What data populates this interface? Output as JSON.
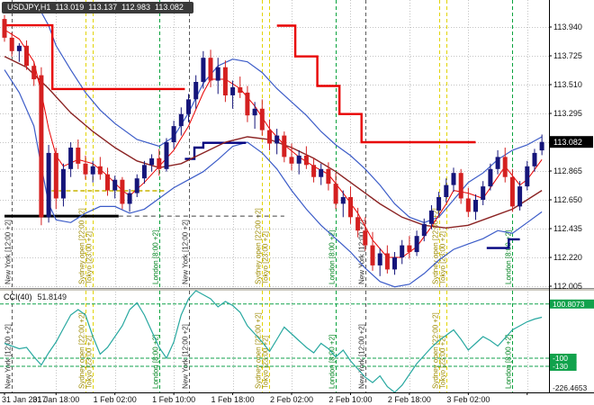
{
  "header": {
    "symbol": "USDJPY,H1",
    "open": "113.019",
    "high": "113.137",
    "low": "112.983",
    "close": "113.082"
  },
  "price_axis": {
    "values": [
      113.94,
      113.725,
      113.51,
      113.295,
      113.08,
      112.865,
      112.65,
      112.435,
      112.22,
      112.005
    ],
    "current_price": 113.082,
    "current_price_label": "113.082"
  },
  "time_axis": {
    "ticks": [
      {
        "i": 0,
        "label": "31 Jan 2017",
        "align": "left"
      },
      {
        "i": 7,
        "label": "31 Jan 18:00"
      },
      {
        "i": 15,
        "label": "1 Feb 02:00"
      },
      {
        "i": 23,
        "label": "1 Feb 10:00"
      },
      {
        "i": 31,
        "label": "1 Feb 18:00"
      },
      {
        "i": 39,
        "label": "2 Feb 02:00"
      },
      {
        "i": 47,
        "label": "2 Feb 10:00"
      },
      {
        "i": 55,
        "label": "2 Feb 18:00"
      },
      {
        "i": 63,
        "label": "3 Feb 02:00"
      },
      {
        "i": 71,
        "label": ""
      }
    ]
  },
  "indicator_pane": {
    "label": "CCI(40)",
    "value": "51.8149",
    "scale_max": 150,
    "scale_min": -226.4653,
    "scale_min_label": "-226.4653",
    "levels": [
      {
        "value": 100.8073,
        "label": "100.8073"
      },
      {
        "value": -100,
        "label": "-100"
      },
      {
        "value": -130,
        "label": "-130"
      }
    ]
  },
  "sessions": [
    {
      "id": "new-york",
      "label": "New York [12:00 +2]",
      "line_color": "#5a5a5a",
      "text_color": "#303030",
      "occurrences": [
        1,
        25,
        49
      ]
    },
    {
      "id": "sydney-open",
      "label": "Sydney open [22:00 +2]",
      "line_color": "#e2d400",
      "text_color": "#9c8a00",
      "occurrences": [
        11,
        35,
        59
      ]
    },
    {
      "id": "tokyo",
      "label": "Tokyo [23:00 +2]",
      "line_color": "#e2d400",
      "text_color": "#9c8a00",
      "occurrences": [
        12,
        36,
        60
      ]
    },
    {
      "id": "london",
      "label": "London [8:00 +2]",
      "line_color": "#00a23c",
      "text_color": "#00821e",
      "occurrences": [
        21,
        45,
        69
      ]
    }
  ],
  "colors": {
    "background": "#ffffff",
    "grid": "#c4c4c4",
    "bull": "#15157a",
    "bear": "#d42020",
    "ma_fast": "#e80000",
    "ma_slow": "#8b2323",
    "bollinger": "#3c5cc8",
    "step_up": "#e80000",
    "step_down": "#00007e",
    "cci": "#28a8a0",
    "level_green": "#12a24c",
    "badge_price_bg": "#000000",
    "badge_level_bg": "#11a24c",
    "black_line": "#000000",
    "yellow_line": "#c8b400"
  },
  "chart_data": {
    "type": "candlestick",
    "symbol": "USDJPY",
    "timeframe": "H1",
    "y_axis_step": 0.215,
    "visible_range": {
      "first_bar": "31 Jan 2017 11:00",
      "last_bar": "3 Feb 2017 12:00"
    },
    "candles": [
      [
        114.0,
        114.03,
        113.83,
        113.86
      ],
      [
        113.86,
        113.9,
        113.72,
        113.76
      ],
      [
        113.76,
        113.82,
        113.68,
        113.8
      ],
      [
        113.8,
        113.84,
        113.62,
        113.65
      ],
      [
        113.65,
        113.68,
        113.5,
        113.55
      ],
      [
        113.58,
        113.64,
        112.46,
        112.52
      ],
      [
        112.52,
        113.06,
        112.48,
        113.0
      ],
      [
        113.0,
        113.04,
        112.58,
        112.66
      ],
      [
        112.66,
        112.92,
        112.6,
        112.88
      ],
      [
        112.88,
        113.08,
        112.82,
        113.04
      ],
      [
        113.04,
        113.1,
        112.88,
        112.92
      ],
      [
        112.92,
        112.98,
        112.8,
        112.84
      ],
      [
        112.84,
        112.94,
        112.78,
        112.9
      ],
      [
        112.9,
        112.97,
        112.8,
        112.84
      ],
      [
        112.84,
        112.89,
        112.68,
        112.72
      ],
      [
        112.72,
        112.83,
        112.66,
        112.8
      ],
      [
        112.8,
        112.82,
        112.58,
        112.62
      ],
      [
        112.62,
        112.73,
        112.56,
        112.7
      ],
      [
        112.7,
        112.84,
        112.67,
        112.81
      ],
      [
        112.81,
        112.94,
        112.77,
        112.91
      ],
      [
        112.91,
        112.99,
        112.86,
        112.96
      ],
      [
        112.96,
        113.03,
        112.83,
        112.88
      ],
      [
        112.88,
        113.11,
        112.86,
        113.08
      ],
      [
        113.08,
        113.24,
        113.03,
        113.2
      ],
      [
        113.2,
        113.34,
        113.13,
        113.29
      ],
      [
        113.29,
        113.44,
        113.23,
        113.4
      ],
      [
        113.4,
        113.58,
        113.33,
        113.53
      ],
      [
        113.53,
        113.76,
        113.48,
        113.71
      ],
      [
        113.71,
        113.77,
        113.49,
        113.54
      ],
      [
        113.54,
        113.71,
        113.44,
        113.64
      ],
      [
        113.64,
        113.69,
        113.38,
        113.43
      ],
      [
        113.43,
        113.54,
        113.33,
        113.49
      ],
      [
        113.49,
        113.57,
        113.41,
        113.45
      ],
      [
        113.45,
        113.5,
        113.23,
        113.28
      ],
      [
        113.28,
        113.38,
        113.18,
        113.33
      ],
      [
        113.33,
        113.4,
        113.13,
        113.17
      ],
      [
        113.17,
        113.25,
        113.02,
        113.07
      ],
      [
        113.07,
        113.18,
        112.99,
        113.13
      ],
      [
        113.13,
        113.16,
        112.93,
        112.97
      ],
      [
        112.97,
        113.07,
        112.87,
        112.92
      ],
      [
        112.92,
        113.02,
        112.84,
        112.98
      ],
      [
        112.98,
        113.05,
        112.88,
        112.91
      ],
      [
        112.91,
        112.96,
        112.78,
        112.82
      ],
      [
        112.82,
        112.92,
        112.76,
        112.88
      ],
      [
        112.88,
        112.93,
        112.72,
        112.77
      ],
      [
        112.77,
        112.85,
        112.58,
        112.62
      ],
      [
        112.62,
        112.72,
        112.52,
        112.67
      ],
      [
        112.67,
        112.75,
        112.47,
        112.52
      ],
      [
        112.52,
        112.59,
        112.37,
        112.42
      ],
      [
        112.42,
        112.52,
        112.27,
        112.31
      ],
      [
        112.31,
        112.41,
        112.12,
        112.16
      ],
      [
        112.16,
        112.29,
        112.08,
        112.25
      ],
      [
        112.25,
        112.31,
        112.1,
        112.13
      ],
      [
        112.13,
        112.26,
        112.09,
        112.22
      ],
      [
        112.22,
        112.35,
        112.17,
        112.31
      ],
      [
        112.31,
        112.38,
        112.21,
        112.26
      ],
      [
        112.26,
        112.42,
        112.23,
        112.38
      ],
      [
        112.38,
        112.51,
        112.34,
        112.47
      ],
      [
        112.47,
        112.61,
        112.43,
        112.57
      ],
      [
        112.57,
        112.71,
        112.53,
        112.67
      ],
      [
        112.67,
        112.81,
        112.63,
        112.76
      ],
      [
        112.76,
        112.89,
        112.71,
        112.85
      ],
      [
        112.85,
        112.88,
        112.62,
        112.66
      ],
      [
        112.66,
        112.74,
        112.52,
        112.56
      ],
      [
        112.56,
        112.69,
        112.5,
        112.65
      ],
      [
        112.65,
        112.79,
        112.61,
        112.75
      ],
      [
        112.75,
        112.92,
        112.72,
        112.88
      ],
      [
        112.88,
        113.02,
        112.84,
        112.97
      ],
      [
        112.97,
        113.04,
        112.78,
        112.82
      ],
      [
        112.82,
        112.88,
        112.56,
        112.6
      ],
      [
        112.6,
        112.79,
        112.57,
        112.75
      ],
      [
        112.75,
        112.94,
        112.72,
        112.9
      ],
      [
        112.9,
        113.03,
        112.86,
        113.0
      ],
      [
        113.019,
        113.137,
        112.983,
        113.082
      ]
    ],
    "overlays": {
      "ma_fast": [
        [
          0,
          113.92
        ],
        [
          2,
          113.85
        ],
        [
          4,
          113.68
        ],
        [
          5,
          113.45
        ],
        [
          6,
          113.18
        ],
        [
          7,
          112.98
        ],
        [
          8,
          112.9
        ],
        [
          10,
          112.95
        ],
        [
          12,
          112.92
        ],
        [
          14,
          112.83
        ],
        [
          16,
          112.72
        ],
        [
          17,
          112.68
        ],
        [
          19,
          112.78
        ],
        [
          21,
          112.9
        ],
        [
          23,
          113.02
        ],
        [
          25,
          113.2
        ],
        [
          27,
          113.45
        ],
        [
          28,
          113.55
        ],
        [
          30,
          113.55
        ],
        [
          32,
          113.48
        ],
        [
          34,
          113.35
        ],
        [
          36,
          113.18
        ],
        [
          38,
          113.06
        ],
        [
          40,
          112.97
        ],
        [
          42,
          112.9
        ],
        [
          44,
          112.84
        ],
        [
          46,
          112.7
        ],
        [
          48,
          112.55
        ],
        [
          50,
          112.35
        ],
        [
          52,
          112.22
        ],
        [
          54,
          112.22
        ],
        [
          56,
          112.3
        ],
        [
          58,
          112.45
        ],
        [
          60,
          112.62
        ],
        [
          61,
          112.72
        ],
        [
          63,
          112.7
        ],
        [
          65,
          112.66
        ],
        [
          67,
          112.82
        ],
        [
          68,
          112.9
        ],
        [
          70,
          112.76
        ],
        [
          71,
          112.8
        ],
        [
          73,
          112.95
        ]
      ],
      "ma_slow": [
        [
          0,
          113.72
        ],
        [
          3,
          113.64
        ],
        [
          6,
          113.48
        ],
        [
          9,
          113.3
        ],
        [
          12,
          113.16
        ],
        [
          15,
          113.04
        ],
        [
          18,
          112.94
        ],
        [
          21,
          112.89
        ],
        [
          24,
          112.92
        ],
        [
          27,
          113.0
        ],
        [
          30,
          113.08
        ],
        [
          33,
          113.12
        ],
        [
          36,
          113.1
        ],
        [
          39,
          113.04
        ],
        [
          42,
          112.96
        ],
        [
          45,
          112.86
        ],
        [
          48,
          112.74
        ],
        [
          51,
          112.62
        ],
        [
          54,
          112.52
        ],
        [
          57,
          112.46
        ],
        [
          60,
          112.44
        ],
        [
          63,
          112.46
        ],
        [
          66,
          112.52
        ],
        [
          69,
          112.58
        ],
        [
          71,
          112.65
        ],
        [
          73,
          112.72
        ]
      ],
      "bb_upper": [
        [
          0,
          114.05
        ],
        [
          3,
          114.08
        ],
        [
          5,
          114.05
        ],
        [
          6,
          113.95
        ],
        [
          7,
          113.8
        ],
        [
          9,
          113.62
        ],
        [
          11,
          113.45
        ],
        [
          13,
          113.32
        ],
        [
          15,
          113.22
        ],
        [
          18,
          113.1
        ],
        [
          21,
          113.05
        ],
        [
          23,
          113.12
        ],
        [
          25,
          113.3
        ],
        [
          27,
          113.52
        ],
        [
          29,
          113.65
        ],
        [
          31,
          113.7
        ],
        [
          33,
          113.68
        ],
        [
          35,
          113.6
        ],
        [
          37,
          113.48
        ],
        [
          39,
          113.38
        ],
        [
          41,
          113.28
        ],
        [
          43,
          113.16
        ],
        [
          45,
          113.06
        ],
        [
          47,
          112.98
        ],
        [
          49,
          112.88
        ],
        [
          51,
          112.76
        ],
        [
          53,
          112.62
        ],
        [
          55,
          112.52
        ],
        [
          57,
          112.48
        ],
        [
          59,
          112.52
        ],
        [
          61,
          112.65
        ],
        [
          63,
          112.78
        ],
        [
          65,
          112.85
        ],
        [
          67,
          112.95
        ],
        [
          69,
          113.02
        ],
        [
          71,
          113.06
        ],
        [
          73,
          113.12
        ]
      ],
      "bb_lower": [
        [
          0,
          113.62
        ],
        [
          2,
          113.45
        ],
        [
          4,
          113.2
        ],
        [
          5,
          112.9
        ],
        [
          6,
          112.62
        ],
        [
          7,
          112.5
        ],
        [
          9,
          112.48
        ],
        [
          11,
          112.55
        ],
        [
          13,
          112.6
        ],
        [
          15,
          112.6
        ],
        [
          17,
          112.55
        ],
        [
          19,
          112.58
        ],
        [
          21,
          112.66
        ],
        [
          23,
          112.74
        ],
        [
          25,
          112.8
        ],
        [
          27,
          112.86
        ],
        [
          29,
          112.95
        ],
        [
          31,
          113.05
        ],
        [
          33,
          113.08
        ],
        [
          35,
          113.0
        ],
        [
          37,
          112.88
        ],
        [
          39,
          112.72
        ],
        [
          41,
          112.58
        ],
        [
          43,
          112.46
        ],
        [
          45,
          112.36
        ],
        [
          47,
          112.26
        ],
        [
          49,
          112.14
        ],
        [
          51,
          112.04
        ],
        [
          53,
          112.0
        ],
        [
          55,
          112.02
        ],
        [
          57,
          112.1
        ],
        [
          59,
          112.2
        ],
        [
          61,
          112.28
        ],
        [
          63,
          112.32
        ],
        [
          65,
          112.36
        ],
        [
          67,
          112.42
        ],
        [
          69,
          112.4
        ],
        [
          71,
          112.48
        ],
        [
          73,
          112.56
        ]
      ],
      "trend_steps_red": [
        [
          [
            0,
            113.953
          ],
          [
            6.5,
            113.953
          ],
          [
            6.5,
            113.477
          ],
          [
            24.5,
            113.477
          ]
        ],
        [
          [
            37,
            113.95
          ],
          [
            39.5,
            113.95
          ],
          [
            39.5,
            113.72
          ],
          [
            42.5,
            113.72
          ],
          [
            42.5,
            113.5
          ],
          [
            45.5,
            113.5
          ],
          [
            45.5,
            113.29
          ],
          [
            48.5,
            113.29
          ],
          [
            48.5,
            113.08
          ],
          [
            64,
            113.08
          ]
        ]
      ],
      "trend_steps_blue": [
        [
          [
            24.5,
            112.955
          ],
          [
            25.8,
            112.955
          ],
          [
            25.8,
            113.04
          ],
          [
            27,
            113.04
          ],
          [
            27,
            113.075
          ],
          [
            32.8,
            113.075
          ]
        ],
        [
          [
            65.5,
            112.29
          ],
          [
            68.5,
            112.29
          ],
          [
            68.5,
            112.355
          ],
          [
            70,
            112.355
          ]
        ]
      ],
      "support_line_black": {
        "from": 0,
        "to": 15.5,
        "price": 112.528
      },
      "support_line_black_dashed": {
        "from": 15.5,
        "to": 38,
        "price": 112.528
      },
      "resistance_line_yellow_dashed": {
        "from": 6.4,
        "to": 21.8,
        "price": 112.717
      }
    },
    "cci_values": [
      -45,
      -55,
      -65,
      -60,
      -95,
      -125,
      -80,
      -40,
      10,
      60,
      80,
      60,
      -20,
      -85,
      -60,
      -20,
      20,
      80,
      105,
      60,
      0,
      -60,
      -100,
      -40,
      60,
      120,
      150,
      135,
      120,
      90,
      110,
      95,
      70,
      20,
      -10,
      -40,
      -75,
      -30,
      15,
      -10,
      -35,
      -60,
      -80,
      -45,
      -65,
      -95,
      -70,
      -110,
      -140,
      -170,
      -190,
      -165,
      -205,
      -226.4653,
      -200,
      -160,
      -120,
      -90,
      -60,
      -35,
      -15,
      5,
      -30,
      -70,
      -45,
      -20,
      -35,
      -55,
      -25,
      5,
      20,
      35,
      45,
      51.8149
    ]
  }
}
